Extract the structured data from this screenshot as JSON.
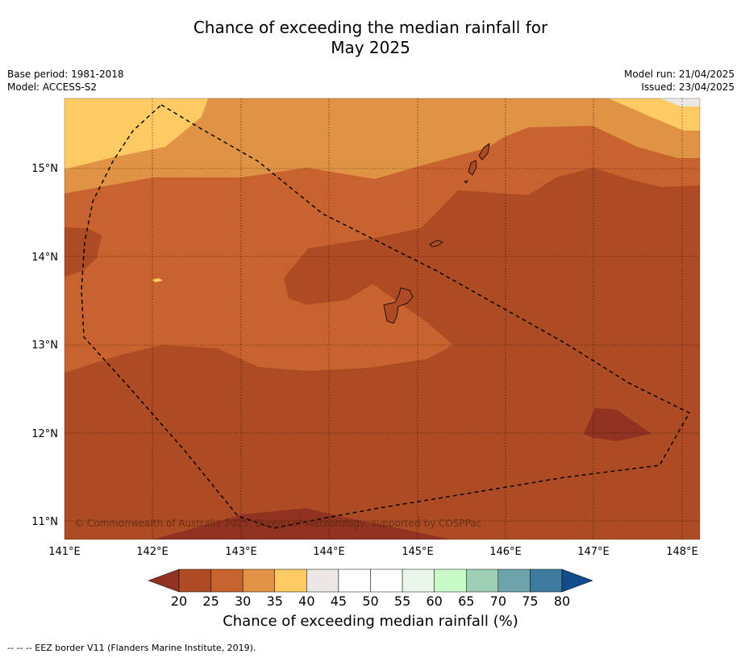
{
  "title_line1": "Chance of exceeding the median rainfall for",
  "title_line2": "May 2025",
  "meta_left": {
    "base_period": "Base period: 1981-2018",
    "model": "Model: ACCESS-S2"
  },
  "meta_right": {
    "model_run": "Model run: 21/04/2025",
    "issued": "Issued: 23/04/2025"
  },
  "map": {
    "lat_labels": [
      "15°N",
      "14°N",
      "13°N",
      "12°N",
      "11°N"
    ],
    "lon_labels": [
      "141°E",
      "142°E",
      "143°E",
      "144°E",
      "145°E",
      "146°E",
      "147°E",
      "148°E"
    ],
    "copyright": "© Commonwealth of Australia 2025, Bureau of Meteorology, supported by COSPPac"
  },
  "colorbar": {
    "title": "Chance of exceeding median rainfall (%)",
    "ticks": [
      "20",
      "25",
      "30",
      "35",
      "40",
      "45",
      "50",
      "55",
      "60",
      "65",
      "70",
      "75",
      "80"
    ],
    "colors": [
      "#ad4b24",
      "#c8622e",
      "#e09245",
      "#fdca64",
      "#ebe7e2",
      "#ffffff",
      "#ffffff",
      "#e9f6e9",
      "#c9fbc8",
      "#9fcfb5",
      "#6ea4a9",
      "#3e7b9e"
    ],
    "low_arrow_color": "#923222",
    "high_arrow_color": "#124c8a"
  },
  "footnote": "--  --  -- EEZ border V11 (Flanders Marine Institute, 2019)."
}
